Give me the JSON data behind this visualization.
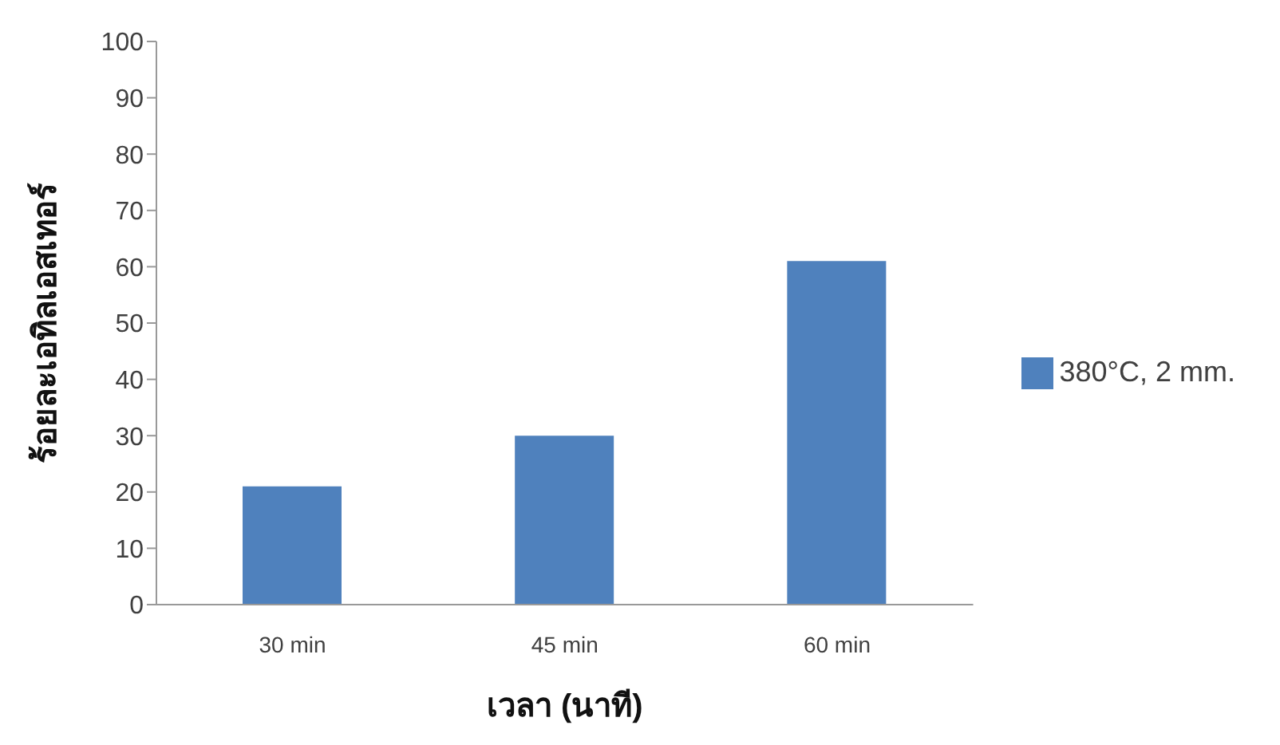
{
  "chart_data": {
    "type": "bar",
    "xlabel": "เวลา (นาที)",
    "ylabel": "ร้อยละเอทิลเอสเทอร์",
    "categories": [
      "30 min",
      "45 min",
      "60 min"
    ],
    "series": [
      {
        "name": "380°C, 2 mm.",
        "color": "#4f81bd",
        "values": [
          21,
          30,
          61
        ]
      }
    ],
    "ylim": [
      0,
      100
    ],
    "yticks": [
      0,
      10,
      20,
      30,
      40,
      50,
      60,
      70,
      80,
      90,
      100
    ],
    "grid": false,
    "legend": "right"
  }
}
